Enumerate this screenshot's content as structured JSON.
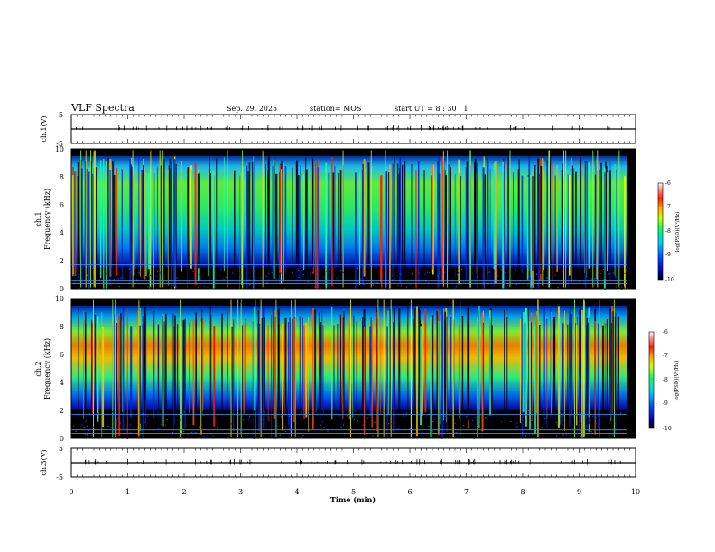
{
  "header": {
    "title": "VLF Spectra",
    "date": "Sep. 29, 2025",
    "station": "station= MOS",
    "start_ut": "start  UT =  8  : 30 : 1"
  },
  "chart_data": [
    {
      "type": "line",
      "panel": "ch1-waveform",
      "ylabel": "ch.1(V)",
      "ylim": [
        -5,
        5
      ],
      "ytick_labels": [
        "5",
        "-5"
      ],
      "xlim": [
        0,
        10
      ],
      "values_note_text": ""
    },
    {
      "type": "heatmap",
      "panel": "ch1-spectrogram",
      "ylabel_line1": "ch.1",
      "ylabel_line2": "Frequency (kHz)",
      "ylim": [
        0,
        10
      ],
      "ytick_labels": [
        "0",
        "2",
        "4",
        "6",
        "8",
        "10"
      ],
      "xlim": [
        0,
        10
      ],
      "band_khz": [
        1.5,
        9.5
      ],
      "colorbar": {
        "label": "log(PSD)(V²/Hz)",
        "range": [
          -10,
          -6
        ],
        "tick_labels": [
          "-6",
          "-7",
          "-8",
          "-9",
          "-10"
        ]
      }
    },
    {
      "type": "heatmap",
      "panel": "ch2-spectrogram",
      "ylabel_line1": "ch.2",
      "ylabel_line2": "Frequency (kHz)",
      "ylim": [
        0,
        10
      ],
      "ytick_labels": [
        "0",
        "2",
        "4",
        "6",
        "8",
        "10"
      ],
      "xlim": [
        0,
        10
      ],
      "band_khz": [
        2.0,
        9.5
      ],
      "colorbar": {
        "label": "log(PSD)(V²/Hz)",
        "range": [
          -10,
          -6
        ],
        "tick_labels": [
          "-6",
          "-7",
          "-8",
          "-9",
          "-10"
        ]
      }
    },
    {
      "type": "line",
      "panel": "ch3-waveform",
      "ylabel": "ch.3(V)",
      "ylim": [
        -5,
        5
      ],
      "ytick_labels": [
        "5",
        "-5"
      ],
      "xlim": [
        0,
        10
      ]
    }
  ],
  "xaxis": {
    "label": "Time (min)",
    "range": [
      0,
      10
    ],
    "tick_labels": [
      "0",
      "1",
      "2",
      "3",
      "4",
      "5",
      "6",
      "7",
      "8",
      "9",
      "10"
    ]
  },
  "colors": {
    "spectrogram_background": "#000000",
    "frame": "#000000",
    "gridline": "#3399ff"
  }
}
